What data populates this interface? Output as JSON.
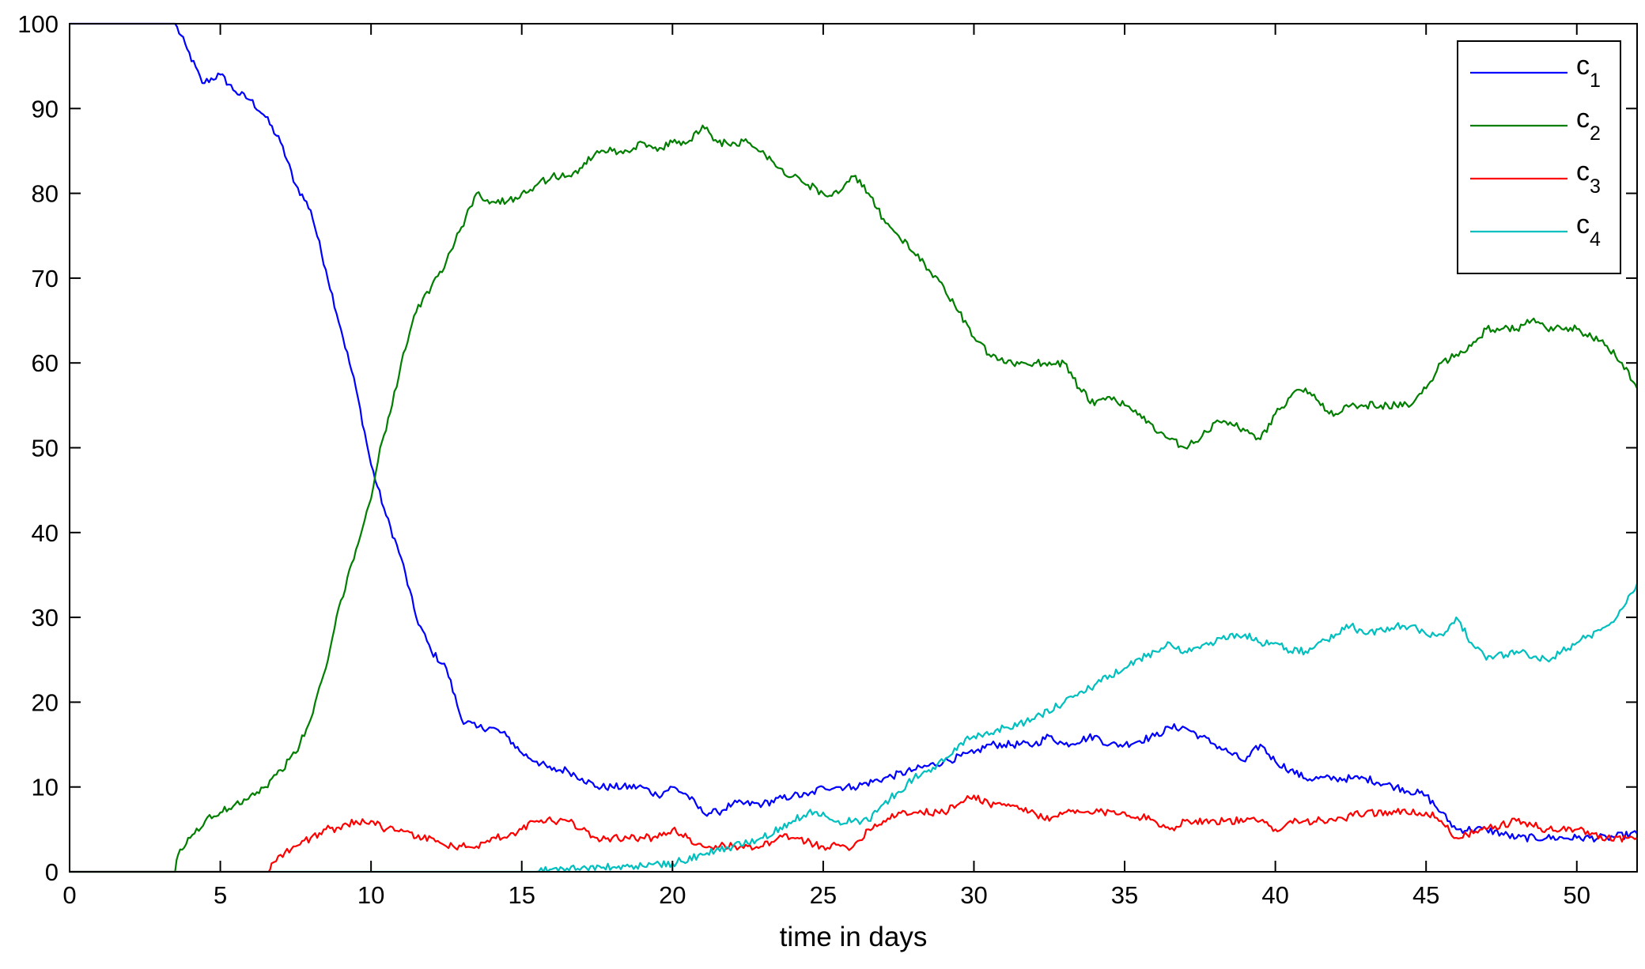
{
  "chart_data": {
    "type": "line",
    "title": "",
    "xlabel": "time in days",
    "ylabel": "",
    "xlim": [
      0,
      52
    ],
    "ylim": [
      0,
      100
    ],
    "xticks": [
      0,
      5,
      10,
      15,
      20,
      25,
      30,
      35,
      40,
      45,
      50
    ],
    "yticks": [
      0,
      10,
      20,
      30,
      40,
      50,
      60,
      70,
      80,
      90,
      100
    ],
    "grid": false,
    "legend": {
      "position": "top-right"
    },
    "series": [
      {
        "name": "c",
        "sub": "1",
        "color": "#0000ff",
        "points": [
          [
            0,
            100
          ],
          [
            3.5,
            100
          ],
          [
            3.9,
            97
          ],
          [
            4.4,
            93
          ],
          [
            5,
            94
          ],
          [
            5.5,
            92
          ],
          [
            6,
            91
          ],
          [
            6.5,
            89
          ],
          [
            7,
            86
          ],
          [
            7.5,
            81
          ],
          [
            8,
            78
          ],
          [
            8.5,
            71
          ],
          [
            9,
            64
          ],
          [
            9.5,
            57
          ],
          [
            10,
            48
          ],
          [
            10.5,
            42
          ],
          [
            11,
            37
          ],
          [
            11.5,
            30
          ],
          [
            12,
            26
          ],
          [
            12.5,
            24
          ],
          [
            13,
            18
          ],
          [
            13.5,
            17
          ],
          [
            14,
            17
          ],
          [
            14.5,
            16
          ],
          [
            15,
            14
          ],
          [
            15.5,
            13
          ],
          [
            16,
            12
          ],
          [
            16.5,
            12
          ],
          [
            17,
            11
          ],
          [
            17.5,
            10
          ],
          [
            18,
            10
          ],
          [
            19,
            10
          ],
          [
            19.5,
            9
          ],
          [
            20,
            10
          ],
          [
            20.5,
            9
          ],
          [
            21,
            7
          ],
          [
            21.5,
            7
          ],
          [
            22,
            8
          ],
          [
            23,
            8
          ],
          [
            24,
            9
          ],
          [
            24.5,
            9
          ],
          [
            25,
            10
          ],
          [
            25.5,
            10
          ],
          [
            26,
            10
          ],
          [
            27,
            11
          ],
          [
            28,
            12
          ],
          [
            29,
            13
          ],
          [
            30,
            14
          ],
          [
            30.5,
            15
          ],
          [
            31,
            15
          ],
          [
            32,
            15
          ],
          [
            32.5,
            16
          ],
          [
            33,
            15
          ],
          [
            34,
            16
          ],
          [
            34.5,
            15
          ],
          [
            35,
            15
          ],
          [
            36,
            16
          ],
          [
            36.5,
            17
          ],
          [
            37,
            17
          ],
          [
            37.5,
            16
          ],
          [
            38,
            15
          ],
          [
            38.5,
            14
          ],
          [
            39,
            13
          ],
          [
            39.5,
            15
          ],
          [
            40,
            13
          ],
          [
            40.5,
            12
          ],
          [
            41,
            11
          ],
          [
            42,
            11
          ],
          [
            42.5,
            11
          ],
          [
            43,
            11
          ],
          [
            44,
            10
          ],
          [
            45,
            9
          ],
          [
            45.5,
            7
          ],
          [
            46,
            5
          ],
          [
            47,
            5
          ],
          [
            48,
            4
          ],
          [
            49,
            4
          ],
          [
            50,
            4
          ],
          [
            51,
            4
          ],
          [
            52,
            4.5
          ]
        ]
      },
      {
        "name": "c",
        "sub": "2",
        "color": "#007f00",
        "points": [
          [
            0,
            0
          ],
          [
            3.5,
            0
          ],
          [
            3.6,
            2
          ],
          [
            4,
            4
          ],
          [
            4.5,
            6
          ],
          [
            5,
            7
          ],
          [
            5.5,
            8
          ],
          [
            6,
            9
          ],
          [
            6.5,
            10
          ],
          [
            7,
            12
          ],
          [
            7.5,
            14
          ],
          [
            8,
            18
          ],
          [
            8.5,
            24
          ],
          [
            9,
            32
          ],
          [
            9.5,
            38
          ],
          [
            10,
            44
          ],
          [
            10.3,
            50
          ],
          [
            10.7,
            55
          ],
          [
            11,
            60
          ],
          [
            11.5,
            66
          ],
          [
            12,
            69
          ],
          [
            12.5,
            72
          ],
          [
            13,
            76
          ],
          [
            13.5,
            80
          ],
          [
            14,
            79
          ],
          [
            14.5,
            79
          ],
          [
            15,
            80
          ],
          [
            15.5,
            81
          ],
          [
            16,
            82
          ],
          [
            16.5,
            82
          ],
          [
            17,
            83
          ],
          [
            17.5,
            85
          ],
          [
            18,
            85
          ],
          [
            18.5,
            85
          ],
          [
            19,
            86
          ],
          [
            19.5,
            85
          ],
          [
            20,
            86
          ],
          [
            20.5,
            86
          ],
          [
            21,
            88
          ],
          [
            21.5,
            86
          ],
          [
            22,
            86
          ],
          [
            22.5,
            86
          ],
          [
            23,
            85
          ],
          [
            23.5,
            83
          ],
          [
            24,
            82
          ],
          [
            24.5,
            81
          ],
          [
            25,
            80
          ],
          [
            25.5,
            80
          ],
          [
            26,
            82
          ],
          [
            26.5,
            80
          ],
          [
            27,
            77
          ],
          [
            27.5,
            75
          ],
          [
            28,
            73
          ],
          [
            28.5,
            71
          ],
          [
            29,
            69
          ],
          [
            29.5,
            66
          ],
          [
            30,
            63
          ],
          [
            30.5,
            61
          ],
          [
            31,
            60
          ],
          [
            32,
            60
          ],
          [
            33,
            60
          ],
          [
            33.5,
            57
          ],
          [
            34,
            55
          ],
          [
            34.5,
            56
          ],
          [
            35,
            55
          ],
          [
            35.5,
            54
          ],
          [
            36,
            52
          ],
          [
            36.5,
            51
          ],
          [
            37,
            50
          ],
          [
            37.5,
            51
          ],
          [
            38,
            53
          ],
          [
            38.5,
            53
          ],
          [
            39,
            52
          ],
          [
            39.5,
            51
          ],
          [
            40,
            54
          ],
          [
            40.5,
            56
          ],
          [
            41,
            57
          ],
          [
            41.5,
            55
          ],
          [
            42,
            54
          ],
          [
            42.5,
            55
          ],
          [
            43,
            55
          ],
          [
            43.5,
            55
          ],
          [
            44,
            55
          ],
          [
            44.5,
            55
          ],
          [
            45,
            57
          ],
          [
            45.5,
            60
          ],
          [
            46,
            61
          ],
          [
            46.5,
            62
          ],
          [
            47,
            64
          ],
          [
            47.5,
            64
          ],
          [
            48,
            64
          ],
          [
            48.5,
            65
          ],
          [
            49,
            64
          ],
          [
            49.5,
            64
          ],
          [
            50,
            64
          ],
          [
            50.5,
            63
          ],
          [
            51,
            62
          ],
          [
            51.5,
            60
          ],
          [
            52,
            57
          ]
        ]
      },
      {
        "name": "c",
        "sub": "3",
        "color": "#ff0000",
        "points": [
          [
            0,
            0
          ],
          [
            6.6,
            0
          ],
          [
            6.7,
            1
          ],
          [
            7,
            2
          ],
          [
            7.5,
            3
          ],
          [
            8,
            4
          ],
          [
            8.5,
            5
          ],
          [
            9,
            5
          ],
          [
            9.5,
            6
          ],
          [
            10,
            6
          ],
          [
            10.5,
            5
          ],
          [
            11,
            5
          ],
          [
            11.5,
            4
          ],
          [
            12,
            4
          ],
          [
            12.5,
            3
          ],
          [
            13,
            3
          ],
          [
            13.5,
            3
          ],
          [
            14,
            4
          ],
          [
            14.5,
            4
          ],
          [
            15,
            5
          ],
          [
            15.5,
            6
          ],
          [
            16,
            6
          ],
          [
            16.5,
            6
          ],
          [
            17,
            5
          ],
          [
            17.5,
            4
          ],
          [
            18,
            4
          ],
          [
            18.5,
            4
          ],
          [
            19,
            4
          ],
          [
            19.5,
            4
          ],
          [
            20,
            5
          ],
          [
            20.5,
            4
          ],
          [
            21,
            3
          ],
          [
            22,
            3
          ],
          [
            22.5,
            3
          ],
          [
            23,
            3
          ],
          [
            23.5,
            4
          ],
          [
            24,
            4
          ],
          [
            25,
            3
          ],
          [
            26,
            3
          ],
          [
            26.5,
            5
          ],
          [
            27,
            6
          ],
          [
            27.5,
            7
          ],
          [
            28,
            7
          ],
          [
            29,
            7
          ],
          [
            29.5,
            8
          ],
          [
            30,
            9
          ],
          [
            30.5,
            8
          ],
          [
            31,
            8
          ],
          [
            32,
            7
          ],
          [
            32.5,
            6
          ],
          [
            33,
            7
          ],
          [
            34,
            7
          ],
          [
            35,
            7
          ],
          [
            36,
            6
          ],
          [
            36.5,
            5
          ],
          [
            37,
            6
          ],
          [
            38,
            6
          ],
          [
            39,
            6
          ],
          [
            39.5,
            6
          ],
          [
            40,
            5
          ],
          [
            40.5,
            6
          ],
          [
            41,
            6
          ],
          [
            42,
            6
          ],
          [
            43,
            7
          ],
          [
            44,
            7
          ],
          [
            45,
            7
          ],
          [
            45.5,
            6
          ],
          [
            46,
            4
          ],
          [
            47,
            5
          ],
          [
            48,
            6
          ],
          [
            49,
            5
          ],
          [
            50,
            5
          ],
          [
            51,
            4
          ],
          [
            52,
            4
          ]
        ]
      },
      {
        "name": "c",
        "sub": "4",
        "color": "#00bfbf",
        "points": [
          [
            0,
            0
          ],
          [
            15.5,
            0
          ],
          [
            16,
            0.3
          ],
          [
            17,
            0.5
          ],
          [
            18,
            0.5
          ],
          [
            19,
            0.7
          ],
          [
            20,
            1
          ],
          [
            21,
            2
          ],
          [
            22,
            3
          ],
          [
            23,
            4
          ],
          [
            24,
            6
          ],
          [
            24.5,
            7
          ],
          [
            25,
            7
          ],
          [
            25.5,
            6
          ],
          [
            26,
            6
          ],
          [
            26.5,
            6
          ],
          [
            27,
            8
          ],
          [
            28,
            11
          ],
          [
            28.5,
            12
          ],
          [
            29,
            13
          ],
          [
            29.5,
            15
          ],
          [
            30,
            16
          ],
          [
            31,
            17
          ],
          [
            32,
            18
          ],
          [
            33,
            20
          ],
          [
            34,
            22
          ],
          [
            35,
            24
          ],
          [
            36,
            26
          ],
          [
            36.5,
            27
          ],
          [
            37,
            26
          ],
          [
            38,
            27
          ],
          [
            38.5,
            28
          ],
          [
            39,
            28
          ],
          [
            39.5,
            27
          ],
          [
            40,
            27
          ],
          [
            40.5,
            26
          ],
          [
            41,
            26
          ],
          [
            42,
            28
          ],
          [
            42.5,
            29
          ],
          [
            43,
            28
          ],
          [
            44,
            29
          ],
          [
            44.5,
            29
          ],
          [
            45,
            28
          ],
          [
            45.5,
            28
          ],
          [
            46,
            30
          ],
          [
            46.5,
            27
          ],
          [
            47,
            25
          ],
          [
            48,
            26
          ],
          [
            49,
            25
          ],
          [
            49.5,
            26
          ],
          [
            50,
            27
          ],
          [
            51,
            29
          ],
          [
            51.5,
            31
          ],
          [
            52,
            34
          ]
        ]
      }
    ]
  }
}
